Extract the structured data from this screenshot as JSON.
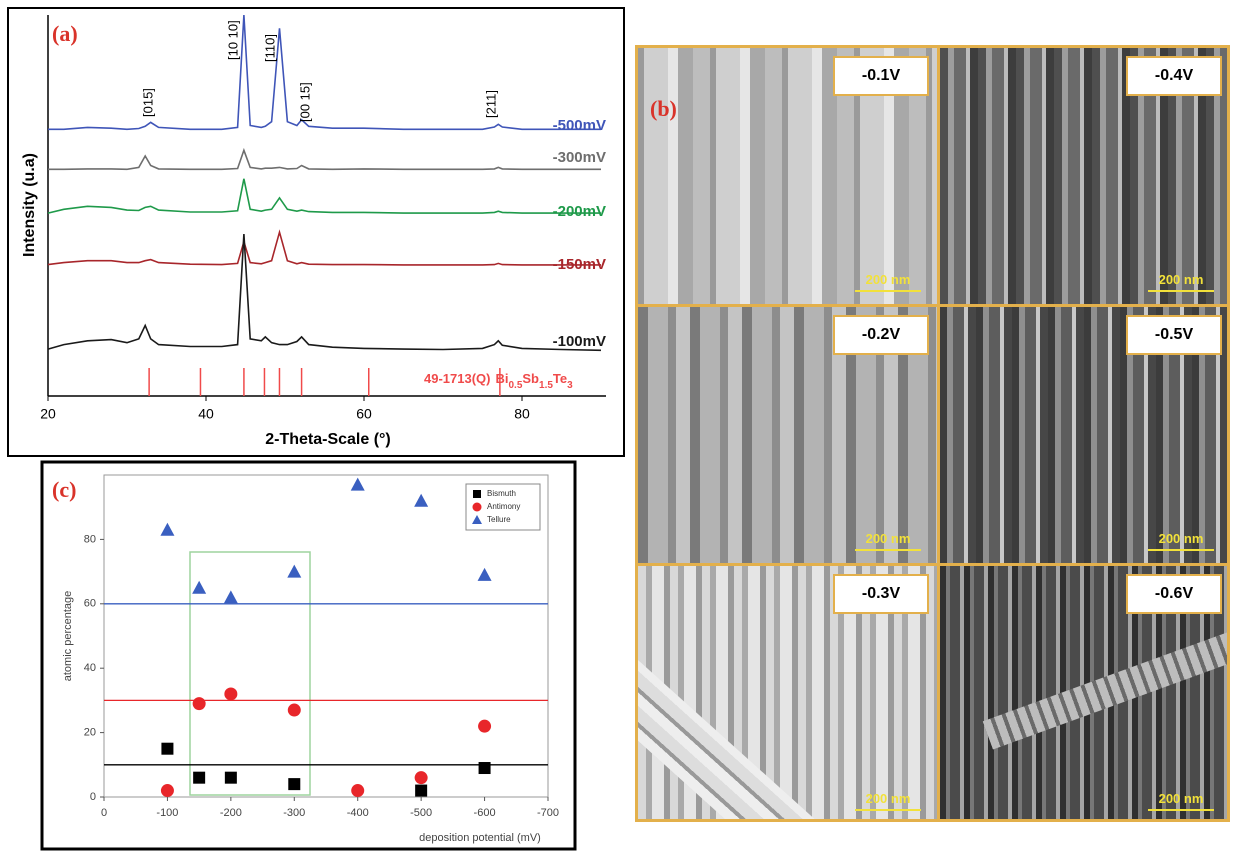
{
  "chart_data": [
    {
      "type": "line",
      "panel_label": "(a)",
      "xlabel": "2-Theta-Scale (°)",
      "ylabel": "Intensity (u.a)",
      "xlim": [
        20,
        90
      ],
      "xticks": [
        20,
        40,
        60,
        80
      ],
      "ylim": [
        0,
        100
      ],
      "x": [
        20,
        22,
        25,
        28,
        30,
        31.5,
        32.3,
        33,
        34,
        38,
        42,
        44,
        44.8,
        45.6,
        47,
        47.5,
        48.3,
        49.3,
        50.3,
        51.5,
        52.1,
        53,
        56,
        60,
        65,
        70,
        75,
        76.5,
        77,
        77.5,
        80,
        85,
        90
      ],
      "series": [
        {
          "name": "-500mV",
          "color": "#3f55b8",
          "values": [
            70,
            70,
            70.5,
            70.3,
            70,
            70.2,
            70.8,
            71.8,
            70.5,
            70,
            70,
            70.5,
            100,
            71,
            70.5,
            70.8,
            72,
            96.5,
            72,
            71,
            72.5,
            70.8,
            70.3,
            70.3,
            70,
            70,
            70,
            70.6,
            71.3,
            70.6,
            70,
            70,
            70
          ]
        },
        {
          "name": "-300mV",
          "color": "#6e6e6e",
          "values": [
            59.5,
            59.5,
            59.6,
            59.6,
            59.5,
            60,
            63,
            60.5,
            59.6,
            59.5,
            59.5,
            59.7,
            64.5,
            60,
            59.6,
            59.8,
            59.8,
            60,
            59.6,
            59.7,
            60.5,
            59.6,
            59.5,
            59.6,
            59.5,
            59.5,
            59.5,
            59.6,
            60,
            59.6,
            59.5,
            59.5,
            59.5
          ]
        },
        {
          "name": "-200mV",
          "color": "#1f9a4a",
          "values": [
            48,
            49,
            49.8,
            49.5,
            48.8,
            48.7,
            49.5,
            49.8,
            48.8,
            48.3,
            48.3,
            48.6,
            57,
            49,
            48.5,
            48.8,
            49,
            52,
            49,
            48.5,
            48.8,
            48.4,
            48.2,
            48.2,
            48,
            48,
            48,
            48.2,
            48.5,
            48.2,
            48,
            48,
            48
          ]
        },
        {
          "name": "-150mV",
          "color": "#a8262b",
          "values": [
            34.5,
            35,
            35.5,
            35.5,
            35,
            35,
            35.5,
            35.8,
            35,
            34.6,
            34.5,
            34.8,
            40.5,
            35,
            34.7,
            35,
            35.5,
            43,
            35.5,
            34.7,
            35,
            34.6,
            34.5,
            34.5,
            34.4,
            34.4,
            34.4,
            34.5,
            34.8,
            34.5,
            34.4,
            34.4,
            34.4
          ]
        },
        {
          "name": "-100mV",
          "color": "#1a1a1a",
          "values": [
            12.3,
            13.5,
            14.5,
            14.8,
            14,
            15,
            18.5,
            15,
            13.5,
            13,
            13,
            13.5,
            42.5,
            15,
            14.5,
            15.5,
            14,
            13.5,
            13.5,
            14.3,
            15.5,
            13.5,
            12.8,
            12.5,
            12.3,
            12.2,
            12.5,
            13.5,
            14.5,
            13.3,
            12.5,
            12.2,
            12
          ]
        }
      ],
      "reference_peaks": {
        "color": "#f04a4a",
        "x": [
          32.8,
          39.3,
          44.8,
          47.4,
          49.3,
          52.1,
          60.6,
          77.2
        ],
        "label_parts": [
          "49-1713(Q)",
          "Bi",
          "0.5",
          "Sb",
          "1.5",
          "Te",
          "3"
        ]
      },
      "peak_labels": [
        "[015]",
        "[10 10]",
        "[110]",
        "[00 15]",
        "[211]"
      ]
    },
    {
      "type": "scatter",
      "panel_label": "(c)",
      "xlabel": "deposition potential (mV)",
      "ylabel": "atomic percentage",
      "xlim": [
        0,
        -700
      ],
      "xticks": [
        0,
        -100,
        -200,
        -300,
        -400,
        -500,
        -600,
        -700
      ],
      "ylim": [
        0,
        100
      ],
      "yticks": [
        0,
        20,
        40,
        60,
        80
      ],
      "legend": "upper right",
      "series": [
        {
          "name": "Bismuth",
          "color": "#000000",
          "marker": "square",
          "x": [
            -100,
            -150,
            -200,
            -300,
            -500,
            -600
          ],
          "values": [
            15,
            6,
            6,
            4,
            2,
            9
          ]
        },
        {
          "name": "Antimony",
          "color": "#e8262a",
          "marker": "circle",
          "x": [
            -100,
            -150,
            -200,
            -300,
            -400,
            -500,
            -600
          ],
          "values": [
            2,
            29,
            32,
            27,
            2,
            6,
            22
          ]
        },
        {
          "name": "Tellure",
          "color": "#3a5fc0",
          "marker": "triangle",
          "x": [
            -100,
            -150,
            -200,
            -300,
            -400,
            -500,
            -600
          ],
          "values": [
            83,
            65,
            62,
            70,
            97,
            92,
            69
          ]
        }
      ],
      "hlines": [
        {
          "value": 10,
          "color": "#000000"
        },
        {
          "value": 30,
          "color": "#e8262a"
        },
        {
          "value": 60,
          "color": "#3a5fc0"
        }
      ]
    }
  ],
  "sem_panel": {
    "label": "(b)",
    "images": [
      {
        "potential": "-0.1V",
        "scale_bar": "200 nm"
      },
      {
        "potential": "-0.4V",
        "scale_bar": "200 nm"
      },
      {
        "potential": "-0.2V",
        "scale_bar": "200 nm"
      },
      {
        "potential": "-0.5V",
        "scale_bar": "200 nm"
      },
      {
        "potential": "-0.3V",
        "scale_bar": "200 nm"
      },
      {
        "potential": "-0.6V",
        "scale_bar": "200 nm"
      }
    ]
  }
}
